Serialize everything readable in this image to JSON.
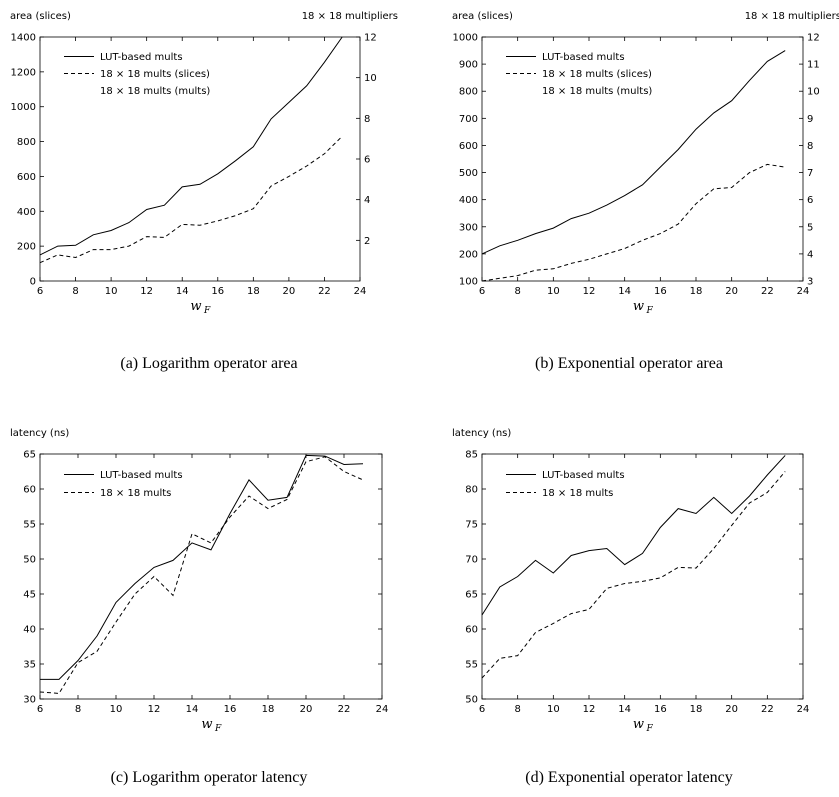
{
  "captions": {
    "a": "(a) Logarithm operator area",
    "b": "(b) Exponential operator area",
    "c": "(c) Logarithm operator latency",
    "d": "(d) Exponential operator latency"
  },
  "xlabel": {
    "main": "w",
    "sub": "F"
  },
  "chart_data": [
    {
      "id": "a",
      "type": "line",
      "ylabel": "area (slices)",
      "y2label": "18 × 18 multipliers",
      "xlim": [
        6,
        24
      ],
      "xticks": [
        6,
        8,
        10,
        12,
        14,
        16,
        18,
        20,
        22,
        24
      ],
      "ylim": [
        0,
        1400
      ],
      "yticks": [
        0,
        200,
        400,
        600,
        800,
        1000,
        1200,
        1400
      ],
      "y2lim": [
        0,
        12
      ],
      "y2ticks": [
        2,
        4,
        6,
        8,
        10,
        12
      ],
      "legend": [
        "LUT-based mults",
        "18 × 18 mults (slices)",
        "18 × 18 mults (mults)"
      ],
      "series": [
        {
          "name": "LUT-based mults",
          "style": "solid",
          "x": [
            6,
            7,
            8,
            9,
            10,
            11,
            12,
            13,
            14,
            15,
            16,
            17,
            18,
            19,
            20,
            21,
            22,
            23
          ],
          "y": [
            150,
            200,
            205,
            265,
            290,
            335,
            410,
            435,
            540,
            555,
            615,
            690,
            770,
            930,
            1025,
            1120,
            1255,
            1400
          ]
        },
        {
          "name": "18 × 18 mults (slices)",
          "style": "dashed",
          "x": [
            6,
            7,
            8,
            9,
            10,
            11,
            12,
            13,
            14,
            15,
            16,
            17,
            18,
            19,
            20,
            21,
            22,
            23
          ],
          "y": [
            105,
            150,
            135,
            180,
            180,
            200,
            255,
            250,
            325,
            320,
            345,
            375,
            415,
            545,
            600,
            660,
            730,
            830
          ]
        }
      ]
    },
    {
      "id": "b",
      "type": "line",
      "ylabel": "area (slices)",
      "y2label": "18 × 18 multipliers",
      "xlim": [
        6,
        24
      ],
      "xticks": [
        6,
        8,
        10,
        12,
        14,
        16,
        18,
        20,
        22,
        24
      ],
      "ylim": [
        100,
        1000
      ],
      "yticks": [
        100,
        200,
        300,
        400,
        500,
        600,
        700,
        800,
        900,
        1000
      ],
      "y2lim": [
        3,
        12
      ],
      "y2ticks": [
        3,
        4,
        5,
        6,
        7,
        8,
        9,
        10,
        11,
        12
      ],
      "legend": [
        "LUT-based mults",
        "18 × 18 mults (slices)",
        "18 × 18 mults (mults)"
      ],
      "series": [
        {
          "name": "LUT-based mults",
          "style": "solid",
          "x": [
            6,
            7,
            8,
            9,
            10,
            11,
            12,
            13,
            14,
            15,
            16,
            17,
            18,
            19,
            20,
            21,
            22,
            23
          ],
          "y": [
            200,
            230,
            250,
            275,
            295,
            330,
            350,
            380,
            415,
            455,
            520,
            585,
            660,
            720,
            765,
            840,
            910,
            950
          ]
        },
        {
          "name": "18 × 18 mults (slices)",
          "style": "dashed",
          "x": [
            6,
            7,
            8,
            9,
            10,
            11,
            12,
            13,
            14,
            15,
            16,
            17,
            18,
            19,
            20,
            21,
            22,
            23
          ],
          "y": [
            100,
            110,
            120,
            140,
            145,
            165,
            180,
            200,
            220,
            250,
            275,
            310,
            385,
            440,
            445,
            500,
            530,
            520
          ]
        }
      ]
    },
    {
      "id": "c",
      "type": "line",
      "ylabel": "latency (ns)",
      "xlim": [
        6,
        24
      ],
      "xticks": [
        6,
        8,
        10,
        12,
        14,
        16,
        18,
        20,
        22,
        24
      ],
      "ylim": [
        30,
        65
      ],
      "yticks": [
        30,
        35,
        40,
        45,
        50,
        55,
        60,
        65
      ],
      "legend": [
        "LUT-based mults",
        "18 × 18 mults"
      ],
      "series": [
        {
          "name": "LUT-based mults",
          "style": "solid",
          "x": [
            6,
            7,
            8,
            9,
            10,
            11,
            12,
            13,
            14,
            15,
            16,
            17,
            18,
            19,
            20,
            21,
            22,
            23
          ],
          "y": [
            32.8,
            32.8,
            35.5,
            39,
            43.8,
            46.5,
            48.8,
            49.8,
            52.3,
            51.3,
            56.5,
            61.3,
            58.4,
            58.8,
            64.8,
            64.7,
            63.5,
            63.6
          ]
        },
        {
          "name": "18 × 18 mults",
          "style": "dashed",
          "x": [
            6,
            7,
            8,
            9,
            10,
            11,
            12,
            13,
            14,
            15,
            16,
            17,
            18,
            19,
            20,
            21,
            22,
            23
          ],
          "y": [
            31,
            30.8,
            35.2,
            36.8,
            41,
            45,
            47.5,
            44.8,
            53.6,
            52.3,
            56,
            59,
            57.2,
            58.5,
            63.9,
            64.6,
            62.5,
            61.3
          ]
        }
      ]
    },
    {
      "id": "d",
      "type": "line",
      "ylabel": "latency (ns)",
      "xlim": [
        6,
        24
      ],
      "xticks": [
        6,
        8,
        10,
        12,
        14,
        16,
        18,
        20,
        22,
        24
      ],
      "ylim": [
        50,
        85
      ],
      "yticks": [
        50,
        55,
        60,
        65,
        70,
        75,
        80,
        85
      ],
      "legend": [
        "LUT-based mults",
        "18 × 18 mults"
      ],
      "series": [
        {
          "name": "LUT-based mults",
          "style": "solid",
          "x": [
            6,
            7,
            8,
            9,
            10,
            11,
            12,
            13,
            14,
            15,
            16,
            17,
            18,
            19,
            20,
            21,
            22,
            23
          ],
          "y": [
            62,
            66,
            67.5,
            69.8,
            68,
            70.5,
            71.2,
            71.5,
            69.2,
            70.8,
            74.5,
            77.2,
            76.5,
            78.8,
            76.5,
            79,
            82,
            84.8
          ]
        },
        {
          "name": "18 × 18 mults",
          "style": "dashed",
          "x": [
            6,
            7,
            8,
            9,
            10,
            11,
            12,
            13,
            14,
            15,
            16,
            17,
            18,
            19,
            20,
            21,
            22,
            23
          ],
          "y": [
            53,
            55.8,
            56.2,
            59.5,
            60.8,
            62.2,
            62.8,
            65.8,
            66.5,
            66.8,
            67.3,
            68.8,
            68.7,
            71.5,
            74.8,
            78,
            79.5,
            82.5
          ]
        }
      ]
    }
  ]
}
